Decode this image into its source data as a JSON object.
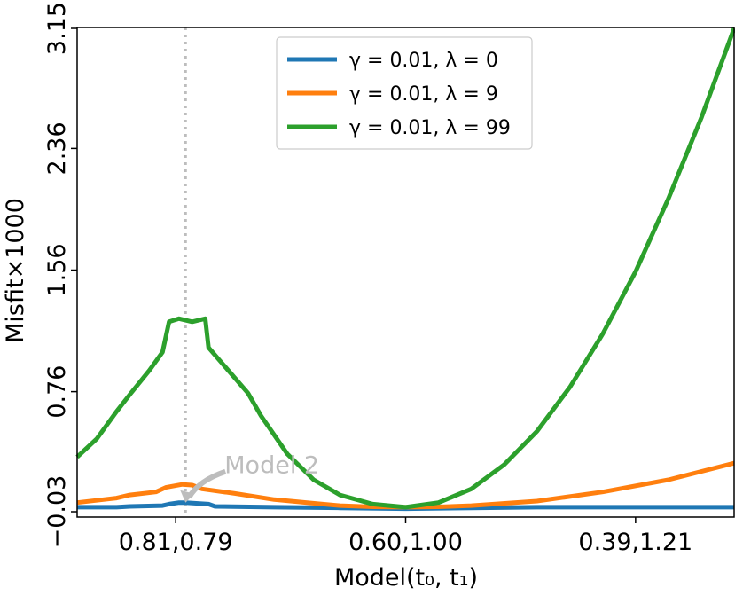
{
  "chart_data": {
    "type": "line",
    "xlabel": "Model(t₀, t₁)",
    "ylabel": "Misfit×1000",
    "xlim": [
      0,
      1
    ],
    "ylim": [
      -0.03,
      3.15
    ],
    "x_ticks": [
      {
        "x": 0.15,
        "label": "0.81,0.79"
      },
      {
        "x": 0.5,
        "label": "0.60,1.00"
      },
      {
        "x": 0.85,
        "label": "0.39,1.21"
      }
    ],
    "y_ticks": [
      {
        "y": -0.03,
        "label": "−0.03"
      },
      {
        "y": 0.76,
        "label": "0.76"
      },
      {
        "y": 1.56,
        "label": "1.56"
      },
      {
        "y": 2.36,
        "label": "2.36"
      },
      {
        "y": 3.15,
        "label": "3.15"
      }
    ],
    "grid": false,
    "legend_position": "top-center",
    "series": [
      {
        "name": "γ = 0.01, λ = 0",
        "color": "#1f77b4",
        "points": [
          [
            0.0,
            0.0
          ],
          [
            0.06,
            0.0
          ],
          [
            0.08,
            0.005
          ],
          [
            0.13,
            0.01
          ],
          [
            0.14,
            0.02
          ],
          [
            0.155,
            0.03
          ],
          [
            0.165,
            0.03
          ],
          [
            0.2,
            0.02
          ],
          [
            0.21,
            0.005
          ],
          [
            0.3,
            0.0
          ],
          [
            0.4,
            -0.005
          ],
          [
            0.5,
            -0.01
          ],
          [
            0.6,
            -0.005
          ],
          [
            0.7,
            0.0
          ],
          [
            1.0,
            0.0
          ]
        ]
      },
      {
        "name": "γ = 0.01, λ = 9",
        "color": "#ff7f0e",
        "points": [
          [
            0.0,
            0.03
          ],
          [
            0.04,
            0.05
          ],
          [
            0.06,
            0.06
          ],
          [
            0.08,
            0.08
          ],
          [
            0.12,
            0.1
          ],
          [
            0.135,
            0.13
          ],
          [
            0.16,
            0.15
          ],
          [
            0.175,
            0.145
          ],
          [
            0.19,
            0.12
          ],
          [
            0.24,
            0.09
          ],
          [
            0.3,
            0.05
          ],
          [
            0.35,
            0.03
          ],
          [
            0.4,
            0.01
          ],
          [
            0.45,
            0.002
          ],
          [
            0.5,
            0.0
          ],
          [
            0.55,
            0.002
          ],
          [
            0.6,
            0.01
          ],
          [
            0.7,
            0.04
          ],
          [
            0.8,
            0.1
          ],
          [
            0.9,
            0.18
          ],
          [
            1.0,
            0.29
          ]
        ]
      },
      {
        "name": "γ = 0.01, λ = 99",
        "color": "#2ca02c",
        "points": [
          [
            0.0,
            0.33
          ],
          [
            0.03,
            0.45
          ],
          [
            0.06,
            0.63
          ],
          [
            0.08,
            0.74
          ],
          [
            0.11,
            0.9
          ],
          [
            0.13,
            1.02
          ],
          [
            0.14,
            1.22
          ],
          [
            0.155,
            1.24
          ],
          [
            0.175,
            1.22
          ],
          [
            0.195,
            1.24
          ],
          [
            0.2,
            1.05
          ],
          [
            0.22,
            0.95
          ],
          [
            0.26,
            0.75
          ],
          [
            0.28,
            0.6
          ],
          [
            0.32,
            0.35
          ],
          [
            0.36,
            0.18
          ],
          [
            0.4,
            0.08
          ],
          [
            0.45,
            0.02
          ],
          [
            0.5,
            0.0
          ],
          [
            0.55,
            0.03
          ],
          [
            0.6,
            0.12
          ],
          [
            0.65,
            0.28
          ],
          [
            0.7,
            0.5
          ],
          [
            0.75,
            0.79
          ],
          [
            0.8,
            1.14
          ],
          [
            0.85,
            1.55
          ],
          [
            0.9,
            2.03
          ],
          [
            0.95,
            2.56
          ],
          [
            1.0,
            3.15
          ]
        ]
      }
    ],
    "vertical_line": {
      "x": 0.165,
      "style": "dotted",
      "color": "#bdbdbd"
    },
    "annotations": [
      {
        "text": "Model 2",
        "point_x": 0.165,
        "point_y": 0.03,
        "color": "#bdbdbd"
      }
    ]
  }
}
